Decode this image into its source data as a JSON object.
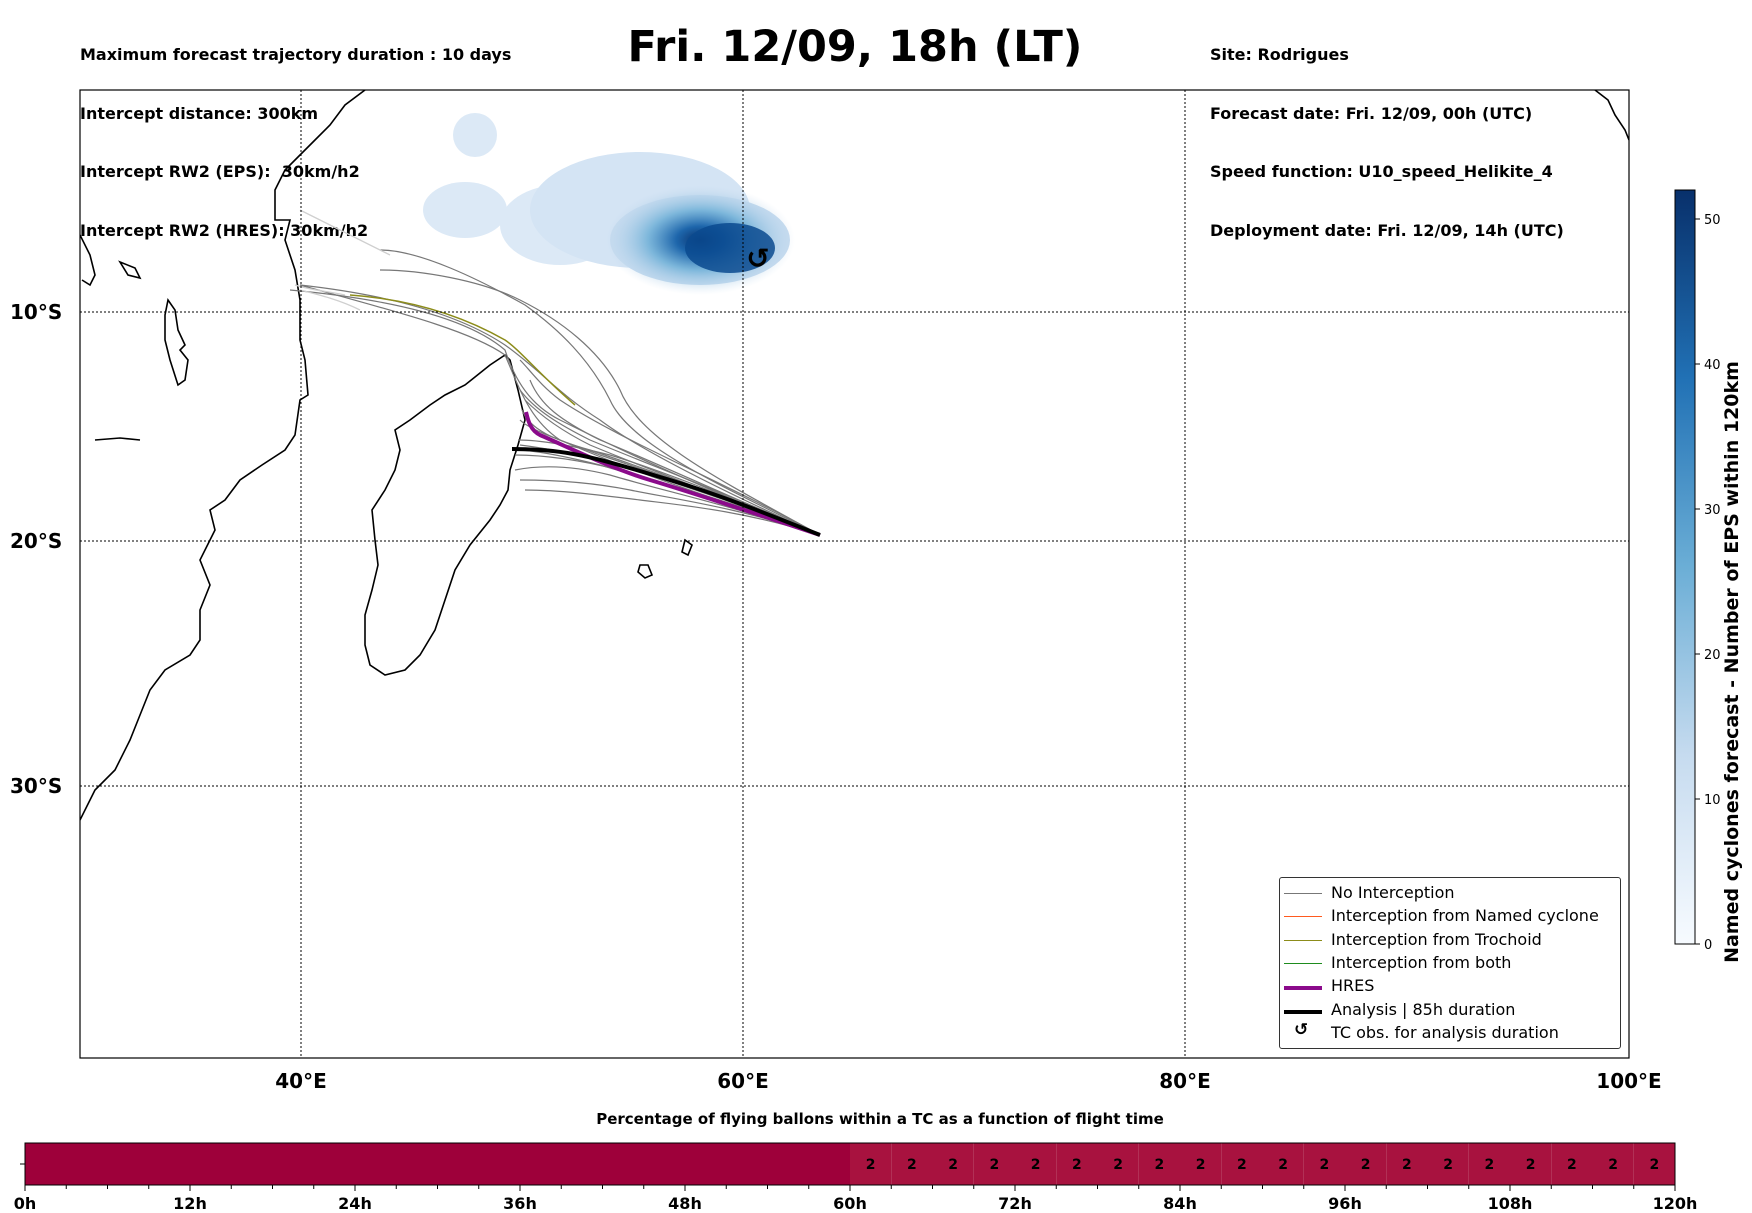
{
  "header": {
    "left": [
      "Maximum forecast trajectory duration : 10 days",
      "Intercept distance: 300km",
      "Intercept RW2 (EPS):  30km/h2",
      "Intercept RW2 (HRES): 30km/h2"
    ],
    "title": "Fri. 12/09, 18h (LT)",
    "right": [
      "Site: Rodrigues",
      "Forecast date: Fri. 12/09, 00h (UTC)",
      "Speed function: U10_speed_Helikite_4",
      "Deployment date: Fri. 12/09, 14h (UTC)"
    ]
  },
  "legend": [
    {
      "label": "No Interception",
      "color": "#777777",
      "style": "line-thin"
    },
    {
      "label": "Interception from Named cyclone",
      "color": "#ff5a1f",
      "style": "line-thin"
    },
    {
      "label": "Interception from Trochoid",
      "color": "#8c8c1a",
      "style": "line-thin"
    },
    {
      "label": "Interception from both",
      "color": "#1e8c1e",
      "style": "line-thin"
    },
    {
      "label": "HRES",
      "color": "#8b0a8b",
      "style": "line-thick"
    },
    {
      "label": "Analysis | 85h duration",
      "color": "#000000",
      "style": "line-thick"
    },
    {
      "label": "TC obs. for analysis duration",
      "color": "#000000",
      "style": "cyclone-symbol"
    }
  ],
  "colorbar": {
    "title": "Named cyclones forecast - Number of EPS within 120km",
    "ticks": [
      "0",
      "10",
      "20",
      "30",
      "40",
      "50"
    ],
    "range": [
      0,
      52
    ],
    "colors": [
      "#f7fbff",
      "#c6dbef",
      "#6baed6",
      "#2171b5",
      "#08306b"
    ]
  },
  "bottom_bar": {
    "title": "Percentage of flying ballons within a TC as a function of flight time",
    "ticks": [
      "0h",
      "12h",
      "24h",
      "36h",
      "48h",
      "60h",
      "72h",
      "84h",
      "96h",
      "108h",
      "120h"
    ],
    "cell_value": "2",
    "colors": {
      "low": "#9e003a",
      "high": "#a8123f"
    }
  },
  "chart_data": {
    "type": "map",
    "title": "Fri. 12/09, 18h (LT)",
    "xlabel": "",
    "ylabel": "",
    "xticks": [
      "40°E",
      "60°E",
      "80°E",
      "100°E"
    ],
    "yticks": [
      "10°S",
      "20°S",
      "30°S"
    ],
    "xlim": [
      30,
      100
    ],
    "ylim": [
      -40,
      -0.2
    ],
    "grid": true,
    "legend_position": "lower right",
    "launch_site": {
      "lon": 63.5,
      "lat": -19.7
    },
    "analysis_track": [
      [
        63.5,
        -19.7
      ],
      [
        60,
        -18.4
      ],
      [
        57,
        -17.1
      ],
      [
        54.5,
        -16.3
      ],
      [
        52,
        -16.0
      ],
      [
        50.5,
        -16.0
      ],
      [
        49.8,
        -16.0
      ]
    ],
    "hres_track": [
      [
        63.5,
        -19.7
      ],
      [
        60,
        -18.55
      ],
      [
        57,
        -17.3
      ],
      [
        54.5,
        -16.5
      ],
      [
        52,
        -15.8
      ],
      [
        51.8,
        -15.4
      ],
      [
        51.5,
        -14.8
      ]
    ],
    "cyclone_density": {
      "center_lon": 60.5,
      "center_lat": -7.3,
      "max_count": 52
    },
    "cyclone_obs": {
      "lon": 60.7,
      "lat": -7.6
    },
    "bottom_bar_values": {
      "hours": [
        60,
        63,
        66,
        69,
        72,
        75,
        78,
        81,
        84,
        87,
        90,
        93,
        96,
        99,
        102,
        105,
        108,
        111,
        114,
        117
      ],
      "percent": [
        2,
        2,
        2,
        2,
        2,
        2,
        2,
        2,
        2,
        2,
        2,
        2,
        2,
        2,
        2,
        2,
        2,
        2,
        2,
        2
      ]
    }
  }
}
